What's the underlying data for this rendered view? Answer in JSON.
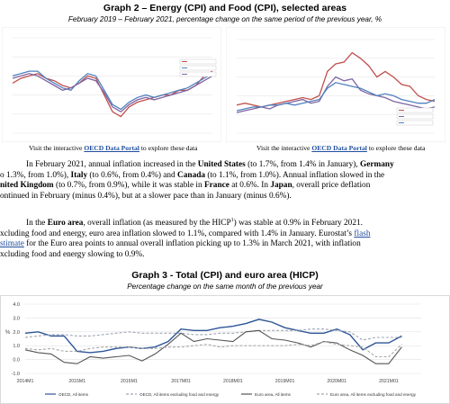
{
  "graph2": {
    "title": "Graph 2 – Energy (CPI) and Food (CPI), selected areas",
    "subtitle": "February 2019 – February 2021, percentage change on the same period of the previous year, %",
    "left_caption": {
      "prefix": "Visit the interactive ",
      "link": "OECD Data Portal",
      "suffix": " to explore these data"
    },
    "right_caption": {
      "prefix": "Visit the interactive ",
      "link": "OECD Data Portal",
      "suffix": " to explore these data"
    }
  },
  "paragraph1": {
    "l1a": "In February 2021, annual inflation increased in the ",
    "l1b": "United States",
    "l1c": " (to 1.7%, from 1.4% in January), ",
    "l1d": "Germany",
    "l2a": "o 1.3%, from 1.0%), ",
    "l2b": "Italy",
    "l2c": " (to 0.6%, from 0.4%) and ",
    "l2d": "Canada",
    "l2e": " (to 1.1%, from 1.0%). Annual inflation slowed in the",
    "l3a": "nited Kingdom",
    "l3b": " (to 0.7%, from 0.9%), while it was stable in ",
    "l3c": "France",
    "l3d": " at 0.6%. In ",
    "l3e": "Japan",
    "l3f": ", overall price deflation",
    "l4": "ontinued in February (minus 0.4%), but at a slower pace than in January (minus 0.6%)."
  },
  "paragraph2": {
    "l1a": "In the ",
    "l1b": "Euro area",
    "l1c": ", overall inflation (as measured by the HICP",
    "l1sup": "1",
    "l1d": ") was stable at 0.9% in February 2021.",
    "l2a": "xcluding food and energy, euro area inflation slowed to 1.1%, compared with 1.4% in January. Eurostat’s ",
    "l2link": "flash",
    "l3link": "stimate",
    "l3a": " for the Euro area points to annual overall inflation picking up to 1.3% in March 2021, with inflation",
    "l4": "xcluding food and energy slowing to 0.9%."
  },
  "graph3": {
    "title": "Graph 3 - Total (CPI) and euro area (HICP)",
    "subtitle": "Percentage change on the same month of the previous year",
    "y_unit": "%",
    "legend": [
      {
        "label": "OECD, All items",
        "color": "#2e5597",
        "dash": "solid"
      },
      {
        "label": "OECD, All items excluding food and energy",
        "color": "#9fa6b3",
        "dash": "dash"
      },
      {
        "label": "Euro area, All items",
        "color": "#555555",
        "dash": "solid"
      },
      {
        "label": "Euro area, All items excluding food and energy",
        "color": "#a8a8a8",
        "dash": "dash"
      }
    ]
  },
  "chart_data": [
    {
      "type": "line",
      "title": "",
      "ylim": [
        -40,
        40
      ],
      "grid": true,
      "legend_placement": "right",
      "series": [
        {
          "color": "#c0504d",
          "values": [
            2,
            6,
            8,
            10,
            6,
            4,
            0,
            -2,
            2,
            8,
            6,
            -8,
            -22,
            -26,
            -18,
            -14,
            -12,
            -10,
            -8,
            -8,
            -4,
            -4,
            0,
            8,
            12
          ]
        },
        {
          "color": "#4f81bd",
          "values": [
            8,
            10,
            12,
            12,
            6,
            2,
            -2,
            -4,
            4,
            10,
            8,
            -4,
            -16,
            -20,
            -14,
            -10,
            -8,
            -10,
            -8,
            -6,
            -4,
            -2,
            2,
            6,
            10
          ]
        },
        {
          "color": "#8064a2",
          "values": [
            6,
            8,
            10,
            8,
            4,
            0,
            -4,
            -2,
            2,
            6,
            4,
            -6,
            -18,
            -22,
            -16,
            -12,
            -10,
            -12,
            -10,
            -8,
            -6,
            -4,
            0,
            4,
            8
          ]
        }
      ]
    },
    {
      "type": "line",
      "title": "",
      "ylim": [
        -2,
        8
      ],
      "grid": true,
      "legend_placement": "bottom-right",
      "series": [
        {
          "color": "#c0504d",
          "values": [
            1.0,
            1.2,
            1.0,
            0.8,
            1.0,
            1.2,
            1.4,
            1.6,
            1.8,
            1.6,
            2.0,
            4.6,
            5.4,
            5.6,
            6.6,
            6.0,
            5.2,
            4.0,
            4.6,
            4.0,
            3.2,
            3.0,
            2.0,
            1.6,
            1.4
          ]
        },
        {
          "color": "#8064a2",
          "values": [
            0.2,
            0.4,
            0.6,
            0.8,
            0.6,
            1.0,
            1.2,
            1.4,
            1.6,
            1.2,
            1.4,
            3.0,
            4.0,
            3.6,
            3.8,
            2.6,
            2.2,
            2.0,
            1.8,
            1.4,
            1.2,
            1.0,
            0.8,
            0.6,
            0.8
          ]
        },
        {
          "color": "#4f81bd",
          "values": [
            0.4,
            0.6,
            0.8,
            0.8,
            1.0,
            1.0,
            1.2,
            1.0,
            1.2,
            1.4,
            1.6,
            2.8,
            3.4,
            3.2,
            3.0,
            2.8,
            2.4,
            2.0,
            2.2,
            2.0,
            1.6,
            1.4,
            1.2,
            1.2,
            1.6
          ]
        }
      ]
    },
    {
      "type": "line",
      "title": "Graph 3 - Total (CPI) and euro area (HICP)",
      "subtitle": "Percentage change on the same month of the previous year",
      "ylabel": "%",
      "ylim": [
        -1.0,
        4.0
      ],
      "yticks": [
        "4.0",
        "3.0",
        "2.0",
        "1.0",
        "0.0",
        "-1.0"
      ],
      "xticks": [
        "2014M1",
        "2015M1",
        "2016M1",
        "2017M01",
        "2018M01",
        "2019M01",
        "2020M01",
        "2021M01"
      ],
      "grid": true,
      "legend_placement": "bottom",
      "x_start": "2014M1",
      "x_step": "quarter",
      "series": [
        {
          "name": "OECD, All items",
          "values": [
            1.9,
            2.0,
            1.7,
            1.7,
            0.6,
            0.5,
            0.6,
            0.8,
            0.9,
            0.8,
            0.9,
            1.3,
            2.2,
            2.1,
            2.1,
            2.3,
            2.4,
            2.6,
            2.9,
            2.7,
            2.3,
            2.1,
            1.9,
            1.9,
            2.2,
            1.8,
            0.7,
            1.2,
            1.2,
            1.7
          ]
        },
        {
          "name": "OECD, All items excluding food and energy",
          "values": [
            1.6,
            1.7,
            1.8,
            1.8,
            1.7,
            1.7,
            1.8,
            1.9,
            2.0,
            1.9,
            1.9,
            1.9,
            1.9,
            1.8,
            1.8,
            1.9,
            1.9,
            2.0,
            2.1,
            2.1,
            2.1,
            2.1,
            2.2,
            2.2,
            2.1,
            2.0,
            1.4,
            1.6,
            1.6,
            1.6
          ]
        },
        {
          "name": "Euro area, All items",
          "values": [
            0.7,
            0.5,
            0.4,
            -0.2,
            -0.3,
            0.2,
            0.1,
            0.2,
            0.3,
            -0.1,
            0.4,
            1.1,
            1.9,
            1.3,
            1.5,
            1.4,
            1.3,
            2.0,
            2.1,
            1.5,
            1.4,
            1.2,
            0.9,
            1.3,
            1.2,
            0.7,
            0.3,
            -0.3,
            -0.3,
            0.9
          ]
        },
        {
          "name": "Euro area, All items excluding food and energy",
          "values": [
            0.8,
            0.7,
            0.8,
            0.6,
            0.6,
            0.8,
            0.9,
            0.9,
            0.9,
            0.8,
            0.8,
            0.9,
            0.9,
            1.0,
            1.1,
            0.9,
            1.0,
            1.0,
            1.0,
            1.0,
            1.0,
            1.1,
            1.0,
            1.3,
            1.1,
            1.0,
            0.9,
            0.2,
            0.2,
            1.1
          ]
        }
      ]
    }
  ]
}
